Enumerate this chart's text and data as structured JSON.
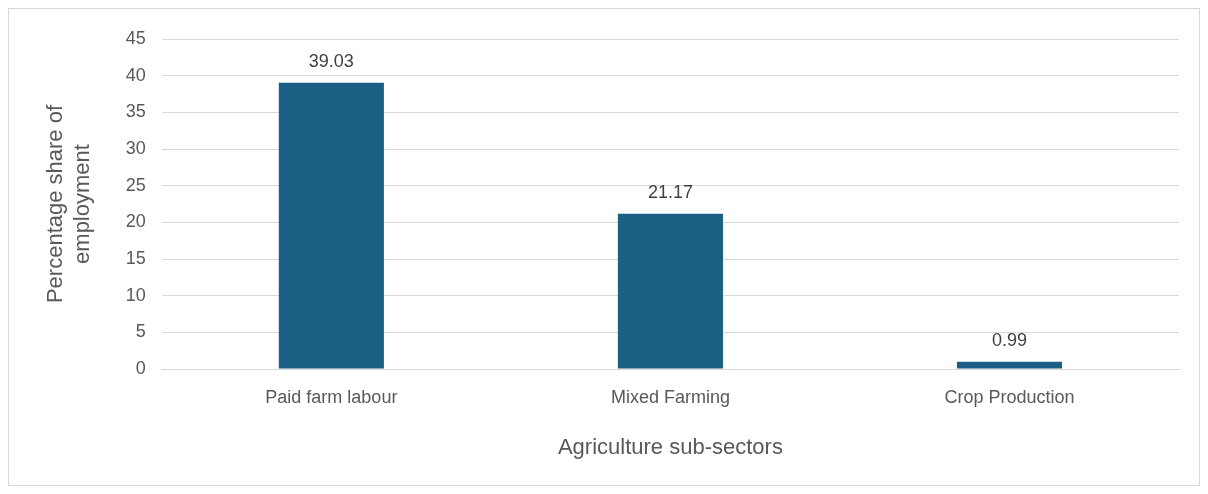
{
  "chart_data": {
    "type": "bar",
    "xlabel": "Agriculture sub-sectors",
    "ylabel": "Percentage share of employment",
    "categories": [
      "Paid farm labour",
      "Mixed Farming",
      "Crop Production"
    ],
    "values": [
      39.03,
      21.17,
      0.99
    ],
    "color": "#1a5f84",
    "ylim": [
      0,
      45
    ],
    "yticks": [
      0,
      5,
      10,
      15,
      20,
      25,
      30,
      35,
      40,
      45
    ],
    "grid": "y",
    "data_labels": true,
    "legend": false
  }
}
